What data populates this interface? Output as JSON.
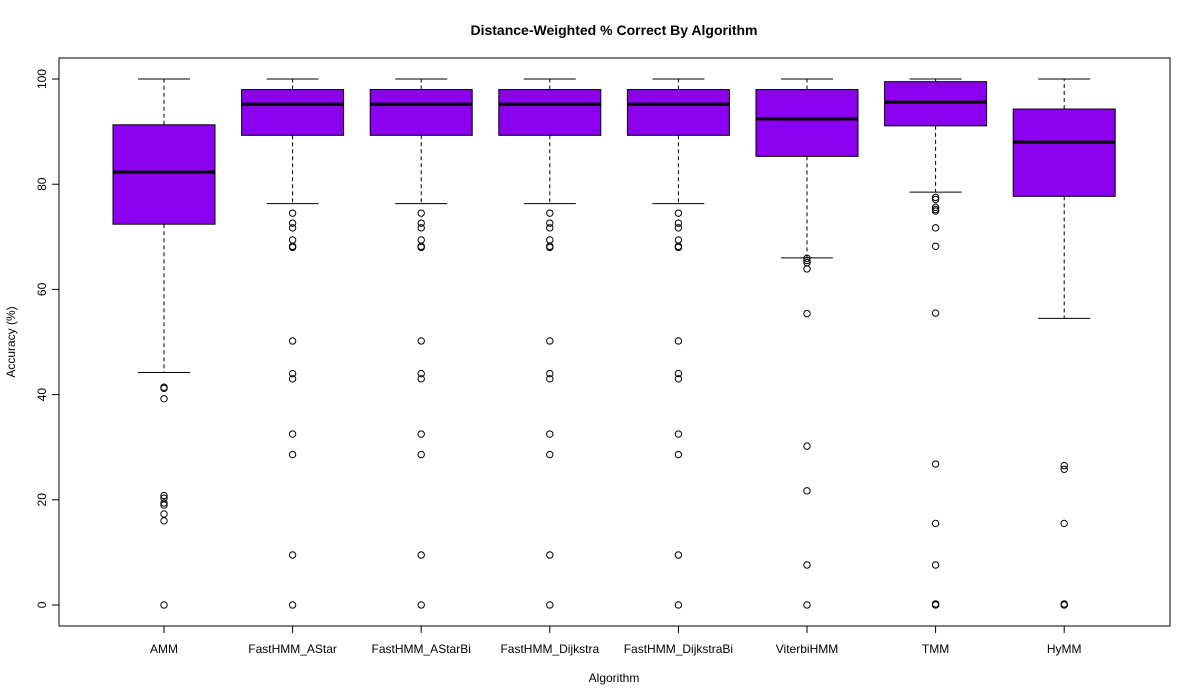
{
  "chart_data": {
    "type": "box",
    "title": "Distance-Weighted % Correct By Algorithm",
    "xlabel": "Algorithm",
    "ylabel": "Accuracy (%)",
    "ylim": [
      -4,
      104
    ],
    "yticks": [
      0,
      20,
      40,
      60,
      80,
      100
    ],
    "box_color": "#8B00EE",
    "grid": false,
    "categories": [
      "AMM",
      "FastHMM_AStar",
      "FastHMM_AStarBi",
      "FastHMM_Dijkstra",
      "FastHMM_DijkstraBi",
      "ViterbiHMM",
      "TMM",
      "HyMM"
    ],
    "boxes": [
      {
        "name": "AMM",
        "whisker_low": 44.2,
        "q1": 72.4,
        "median": 82.3,
        "q3": 91.3,
        "whisker_high": 100,
        "outliers": [
          41.4,
          41.2,
          39.2,
          20.8,
          20.3,
          19.4,
          19.0,
          17.3,
          16.0,
          0
        ]
      },
      {
        "name": "FastHMM_AStar",
        "whisker_low": 76.3,
        "q1": 89.3,
        "median": 95.2,
        "q3": 98.0,
        "whisker_high": 100,
        "outliers": [
          74.5,
          72.6,
          71.7,
          69.4,
          68.2,
          68.0,
          50.2,
          44.0,
          43.0,
          32.5,
          28.6,
          9.5,
          0
        ]
      },
      {
        "name": "FastHMM_AStarBi",
        "whisker_low": 76.3,
        "q1": 89.3,
        "median": 95.2,
        "q3": 98.0,
        "whisker_high": 100,
        "outliers": [
          74.5,
          72.6,
          71.7,
          69.4,
          68.2,
          68.0,
          50.2,
          44.0,
          43.0,
          32.5,
          28.6,
          9.5,
          0
        ]
      },
      {
        "name": "FastHMM_Dijkstra",
        "whisker_low": 76.3,
        "q1": 89.3,
        "median": 95.2,
        "q3": 98.0,
        "whisker_high": 100,
        "outliers": [
          74.5,
          72.6,
          71.7,
          69.4,
          68.2,
          68.0,
          50.2,
          44.0,
          43.0,
          32.5,
          28.6,
          9.5,
          0
        ]
      },
      {
        "name": "FastHMM_DijkstraBi",
        "whisker_low": 76.3,
        "q1": 89.3,
        "median": 95.2,
        "q3": 98.0,
        "whisker_high": 100,
        "outliers": [
          74.5,
          72.6,
          71.7,
          69.4,
          68.2,
          68.0,
          50.2,
          44.0,
          43.0,
          32.5,
          28.6,
          9.5,
          0
        ]
      },
      {
        "name": "ViterbiHMM",
        "whisker_low": 66.0,
        "q1": 85.3,
        "median": 92.4,
        "q3": 98.0,
        "whisker_high": 100,
        "outliers": [
          65.9,
          65.5,
          65.1,
          63.9,
          55.4,
          30.2,
          21.7,
          7.6,
          0
        ]
      },
      {
        "name": "TMM",
        "whisker_low": 78.5,
        "q1": 91.1,
        "median": 95.6,
        "q3": 99.5,
        "whisker_high": 100,
        "outliers": [
          77.5,
          77.1,
          75.6,
          75.2,
          74.9,
          71.7,
          68.2,
          55.5,
          26.8,
          15.5,
          7.6,
          0.2,
          0
        ]
      },
      {
        "name": "HyMM",
        "whisker_low": 54.5,
        "q1": 77.7,
        "median": 88.0,
        "q3": 94.3,
        "whisker_high": 100,
        "outliers": [
          26.5,
          25.8,
          15.5,
          0.2,
          0
        ]
      }
    ]
  }
}
